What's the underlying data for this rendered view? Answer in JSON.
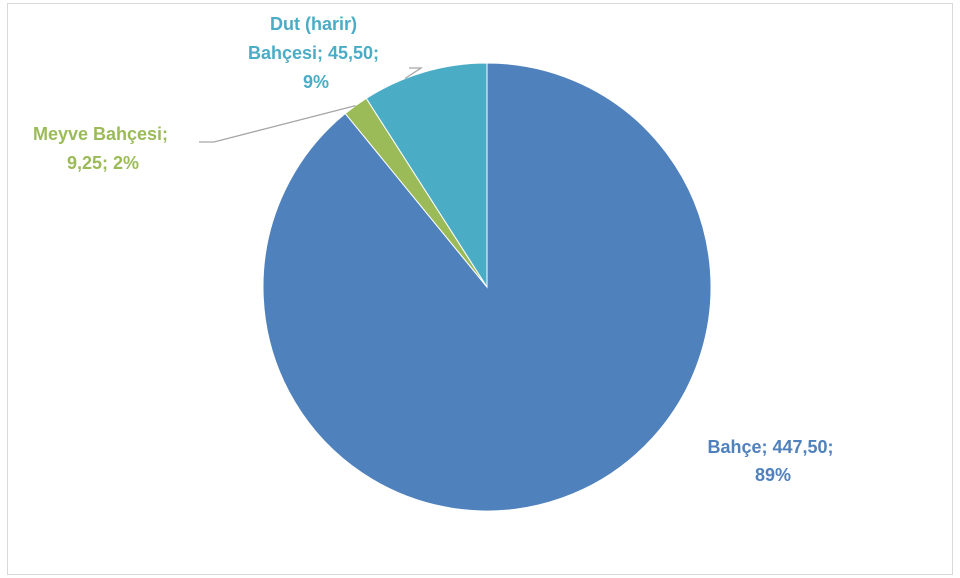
{
  "chart_data": {
    "type": "pie",
    "title": "",
    "start_angle_deg": 0,
    "direction": "clockwise",
    "slices": [
      {
        "name": "Bahçe",
        "value": 447.5,
        "percent": 89,
        "color": "#4f81bd",
        "label_lines": [
          "Bahçe; 447,50;",
          "89%"
        ]
      },
      {
        "name": "Meyve Bahçesi",
        "value": 9.25,
        "percent": 2,
        "color": "#9bbb59",
        "label_lines": [
          "Meyve Bahçesi;",
          "9,25; 2%"
        ]
      },
      {
        "name": "Dut (harir) Bahçesi",
        "value": 45.5,
        "percent": 9,
        "color": "#4bacc6",
        "label_lines": [
          "Dut (harir)",
          "Bahçesi; 45,50;",
          "9%"
        ]
      }
    ],
    "leader_line_color": "#a6a6a6"
  }
}
